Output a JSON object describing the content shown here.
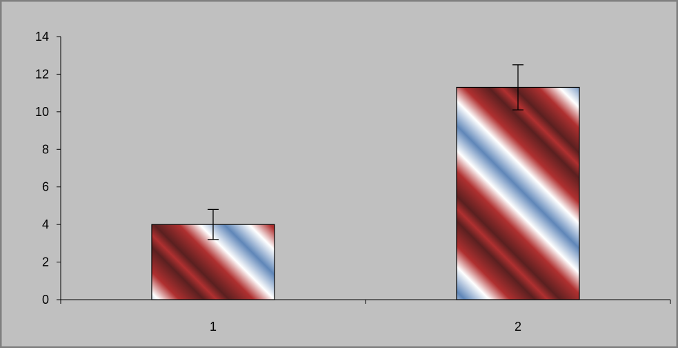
{
  "chart_data": {
    "type": "bar",
    "categories": [
      "1",
      "2"
    ],
    "values": [
      4.0,
      11.3
    ],
    "error_bars": [
      0.8,
      1.2
    ],
    "ylim": [
      0,
      14
    ],
    "yticks": [
      0,
      2,
      4,
      6,
      8,
      10,
      12,
      14
    ],
    "title": "",
    "xlabel": "",
    "ylabel": "",
    "grid": false,
    "legend": "none"
  },
  "colors": {
    "plot_background": "#c0c0c0",
    "frame_border": "#808080",
    "bar_red": "#b03030",
    "bar_blue": "#5f86b8",
    "bar_white": "#ffffff",
    "bar_stripe_dark": "#5a2020",
    "axis": "#000000"
  }
}
